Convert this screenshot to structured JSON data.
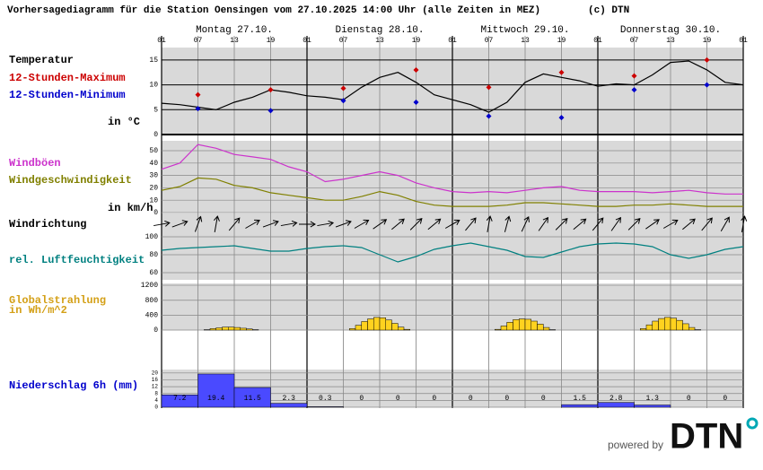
{
  "title": "Vorhersagediagramm für die Station Oensingen vom 27.10.2025 14:00 Uhr (alle Zeiten in MEZ)",
  "credit": "(c) DTN",
  "time_axis": {
    "days": [
      "Montag 27.10.",
      "Dienstag 28.10.",
      "Mittwoch 29.10.",
      "Donnerstag 30.10."
    ],
    "hour_labels": [
      "01",
      "07",
      "13",
      "19",
      "01",
      "07",
      "13",
      "19",
      "01",
      "07",
      "13",
      "19",
      "01",
      "07",
      "13",
      "19",
      "01"
    ]
  },
  "chart_data": [
    {
      "type": "line",
      "unit": "in °C",
      "ylim": [
        0,
        17.5
      ],
      "yticks": [
        0,
        5,
        10,
        15
      ],
      "grid": true,
      "series": [
        {
          "name": "Temperatur",
          "color": "#000000",
          "values": [
            6.3,
            6.0,
            5.5,
            5.0,
            6.5,
            7.5,
            9.0,
            8.5,
            7.8,
            7.5,
            7.0,
            9.5,
            11.5,
            12.5,
            10.5,
            8.0,
            7.0,
            6.0,
            4.5,
            6.5,
            10.5,
            12.2,
            11.5,
            10.8,
            9.7,
            10.2,
            10.0,
            12.0,
            14.5,
            14.8,
            13.0,
            10.5,
            10.0
          ]
        },
        {
          "name": "12-Stunden-Maximum",
          "color": "#cc0000",
          "markers": true,
          "values": [
            8.0,
            9.0,
            9.3,
            13.0,
            9.5,
            12.5,
            11.8,
            15.0
          ]
        },
        {
          "name": "12-Stunden-Minimum",
          "color": "#0000cc",
          "markers": true,
          "values": [
            5.2,
            4.8,
            6.8,
            6.5,
            3.7,
            3.4,
            9.0,
            10.0
          ]
        }
      ]
    },
    {
      "type": "line",
      "unit": "in km/h",
      "ylim": [
        0,
        58
      ],
      "yticks": [
        0,
        10,
        20,
        30,
        40,
        50
      ],
      "grid": true,
      "series": [
        {
          "name": "Windböen",
          "color": "#cc33cc",
          "values": [
            35,
            40,
            55,
            52,
            47,
            45,
            43,
            37,
            33,
            25,
            27,
            30,
            33,
            30,
            24,
            20,
            17,
            16,
            17,
            16,
            18,
            20,
            21,
            18,
            17,
            17,
            17,
            16,
            17,
            18,
            16,
            15,
            15
          ]
        },
        {
          "name": "Windgeschwindigkeit",
          "color": "#808000",
          "values": [
            18,
            21,
            28,
            27,
            22,
            20,
            16,
            14,
            12,
            10,
            10,
            13,
            17,
            14,
            9,
            6,
            5,
            5,
            5,
            6,
            8,
            8,
            7,
            6,
            5,
            5,
            6,
            6,
            7,
            6,
            5,
            5,
            5
          ]
        }
      ]
    },
    {
      "type": "arrows",
      "title": "Windrichtung",
      "values": [
        260,
        250,
        200,
        190,
        220,
        240,
        250,
        260,
        270,
        260,
        250,
        240,
        235,
        230,
        225,
        230,
        240,
        220,
        190,
        195,
        205,
        215,
        225,
        230,
        220,
        215,
        225,
        235,
        240,
        230,
        220,
        210,
        190
      ]
    },
    {
      "type": "line",
      "ylim": [
        52,
        102
      ],
      "yticks": [
        60,
        80,
        100
      ],
      "grid": true,
      "series": [
        {
          "name": "rel. Luftfeuchtigkeit",
          "color": "#008080",
          "values": [
            85,
            87,
            88,
            89,
            90,
            87,
            84,
            84,
            87,
            89,
            90,
            88,
            80,
            72,
            78,
            86,
            90,
            93,
            89,
            85,
            78,
            77,
            83,
            89,
            92,
            93,
            92,
            89,
            80,
            76,
            80,
            86,
            89
          ]
        }
      ]
    },
    {
      "type": "bar",
      "title": "Globalstrahlung",
      "unit": "in Wh/m^2",
      "color": "#ffd21f",
      "ylim": [
        0,
        1250
      ],
      "yticks": [
        0,
        400,
        800,
        1200
      ],
      "grid": true,
      "values": [
        0,
        0,
        0,
        0,
        0,
        0,
        0,
        10,
        40,
        60,
        80,
        80,
        70,
        50,
        30,
        10,
        0,
        0,
        0,
        0,
        0,
        0,
        0,
        0,
        0,
        0,
        0,
        0,
        0,
        0,
        0,
        40,
        130,
        230,
        300,
        340,
        330,
        270,
        180,
        80,
        20,
        0,
        0,
        0,
        0,
        0,
        0,
        0,
        0,
        0,
        0,
        0,
        0,
        0,
        0,
        20,
        110,
        210,
        280,
        300,
        290,
        240,
        160,
        70,
        10,
        0,
        0,
        0,
        0,
        0,
        0,
        0,
        0,
        0,
        0,
        0,
        0,
        0,
        0,
        40,
        140,
        240,
        310,
        340,
        320,
        260,
        170,
        70,
        10,
        0,
        0,
        0,
        0,
        0,
        0,
        0
      ]
    },
    {
      "type": "bar",
      "title": "Niederschlag 6h (mm)",
      "color": "#4a4aff",
      "ylim": [
        0,
        22
      ],
      "yticks": [
        0,
        4,
        8,
        12,
        16,
        20
      ],
      "grid": true,
      "data_labels": true,
      "values": [
        7.2,
        19.4,
        11.5,
        2.3,
        0.3,
        0,
        0,
        0,
        0,
        0,
        0,
        1.5,
        2.8,
        1.3,
        0,
        0
      ]
    }
  ],
  "footer": {
    "powered": "powered by",
    "logo": "DTN"
  }
}
